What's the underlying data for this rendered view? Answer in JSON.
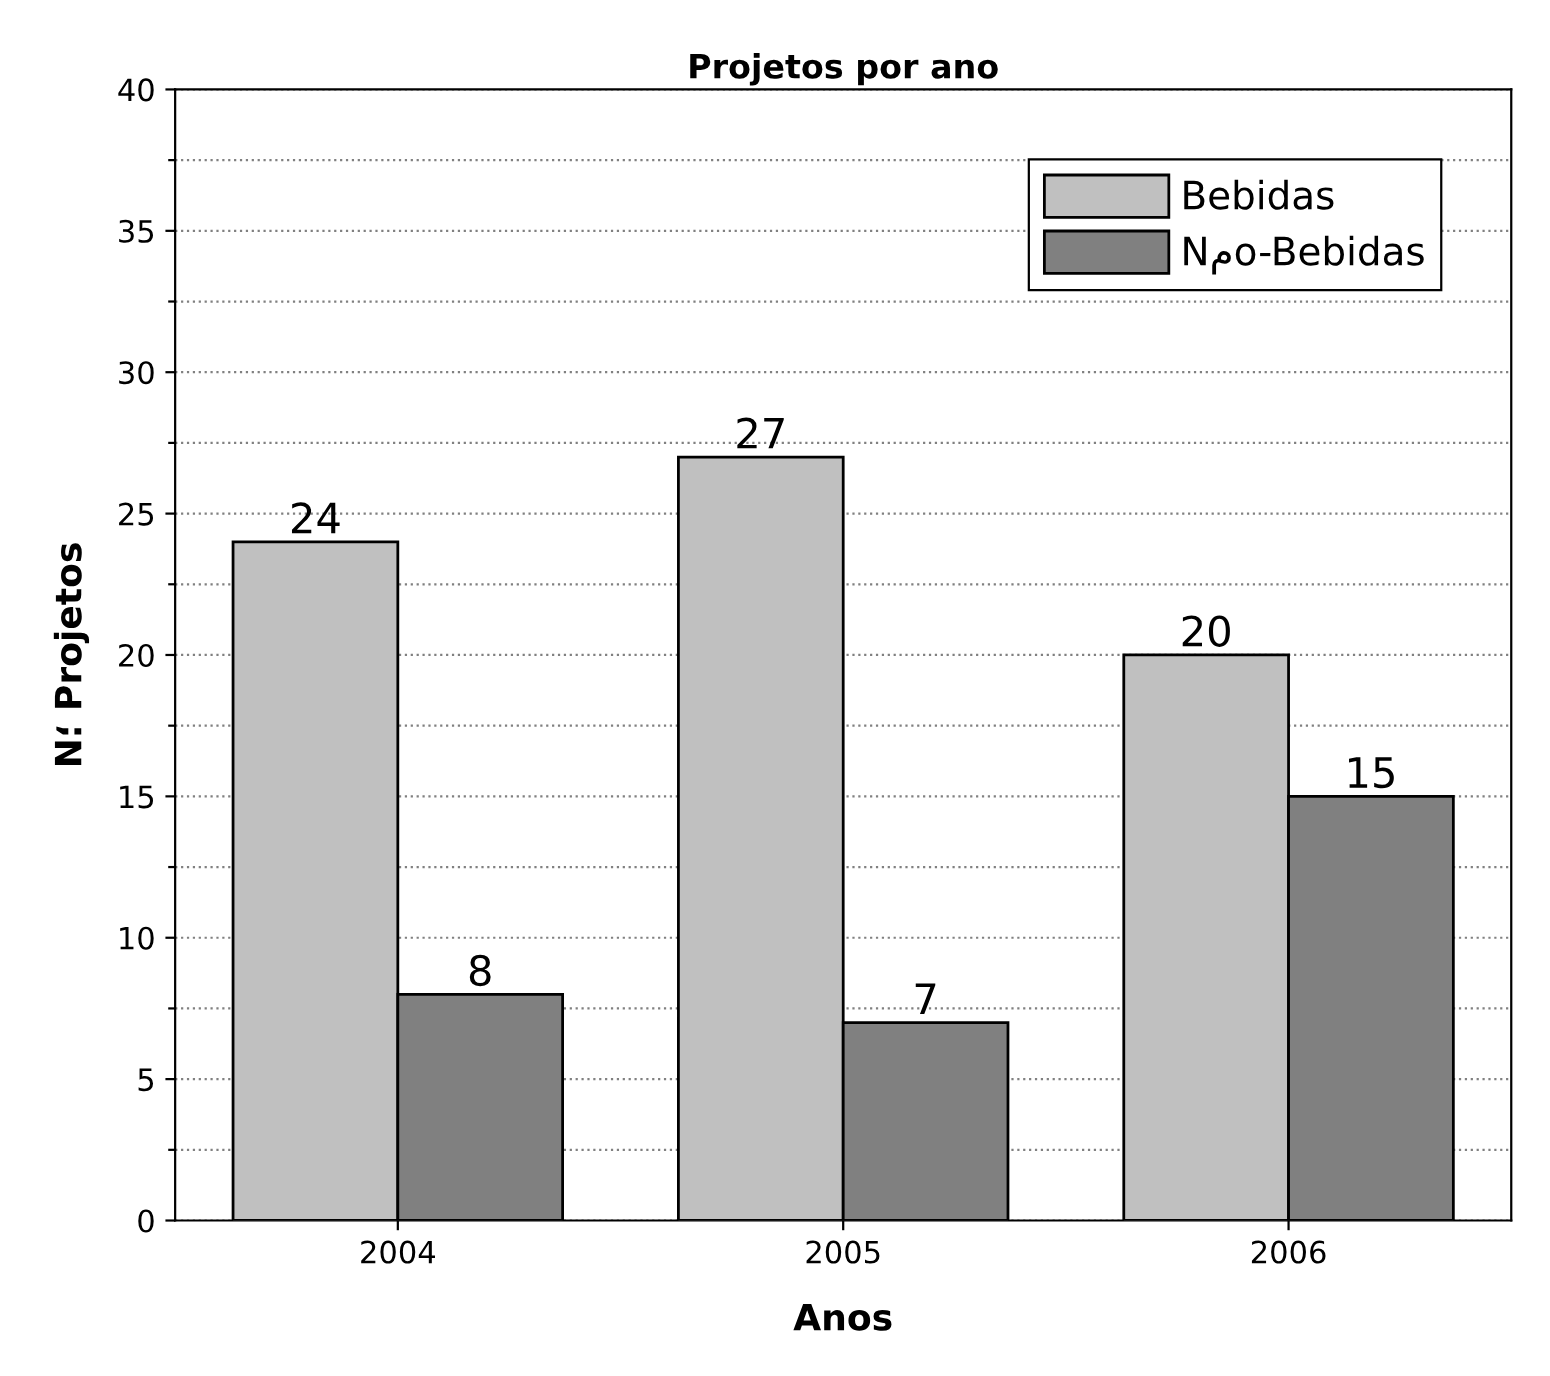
{
  "chart_data": {
    "type": "bar",
    "title": "Projetos por ano",
    "xlabel": "Anos",
    "ylabel": "N؛ Projetos",
    "categories": [
      "2004",
      "2005",
      "2006"
    ],
    "series": [
      {
        "name": "Bebidas",
        "color": "#c0c0c0",
        "values": [
          24,
          27,
          20
        ]
      },
      {
        "name": "Nمo-Bebidas",
        "color": "#808080",
        "values": [
          8,
          7,
          15
        ]
      }
    ],
    "ylim": [
      0,
      40
    ],
    "yticks": [
      0,
      {
        "value": 2.5,
        "label": null
      },
      5,
      {
        "value": 7.5,
        "label": null
      },
      10,
      {
        "value": 12.5,
        "label": null
      },
      15,
      {
        "value": 17.5,
        "label": null
      },
      20,
      {
        "value": 22.5,
        "label": null
      },
      25,
      {
        "value": 27.5,
        "label": null
      },
      30,
      {
        "value": 32.5,
        "label": null
      },
      35,
      {
        "value": 37.5,
        "label": null
      },
      40
    ],
    "grid": "y",
    "legend": "top right",
    "data_labels": true
  }
}
